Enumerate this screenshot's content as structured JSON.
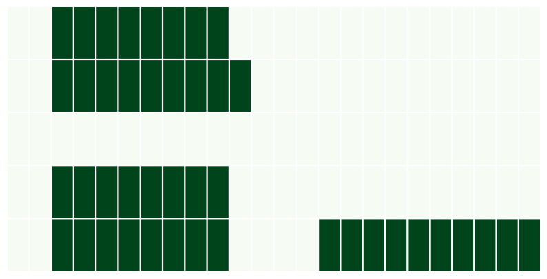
{
  "chart_data": {
    "type": "heatmap",
    "rows": 5,
    "cols": 24,
    "values": [
      [
        0,
        0,
        1,
        1,
        1,
        1,
        1,
        1,
        1,
        1,
        0,
        0,
        0,
        0,
        0,
        0,
        0,
        0,
        0,
        0,
        0,
        0,
        0,
        0
      ],
      [
        0,
        0,
        1,
        1,
        1,
        1,
        1,
        1,
        1,
        1,
        1,
        0,
        0,
        0,
        0,
        0,
        0,
        0,
        0,
        0,
        0,
        0,
        0,
        0
      ],
      [
        0,
        0,
        0,
        0,
        0,
        0,
        0,
        0,
        0,
        0,
        0,
        0,
        0,
        0,
        0,
        0,
        0,
        0,
        0,
        0,
        0,
        0,
        0,
        0
      ],
      [
        0,
        0,
        1,
        1,
        1,
        1,
        1,
        1,
        1,
        1,
        0,
        0,
        0,
        0,
        0,
        0,
        0,
        0,
        0,
        0,
        0,
        0,
        0,
        0
      ],
      [
        0,
        0,
        1,
        1,
        1,
        1,
        1,
        1,
        1,
        1,
        0,
        0,
        0,
        0,
        1,
        1,
        1,
        1,
        1,
        1,
        1,
        1,
        1,
        1
      ]
    ],
    "colorscale": {
      "low": "#f6fbf4",
      "high": "#00441b"
    },
    "grid_line_color": "#ffffff",
    "title": "",
    "xlabel": "",
    "ylabel": ""
  }
}
